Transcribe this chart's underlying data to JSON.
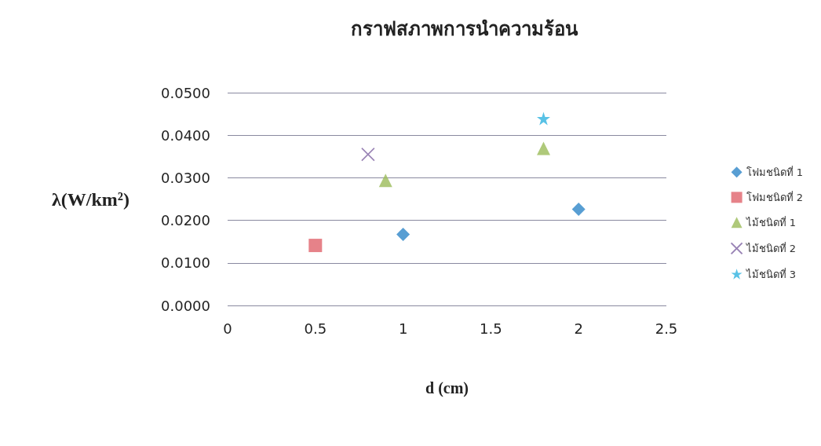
{
  "chart_data": {
    "type": "scatter",
    "title": "กราฟสภาพการนำความร้อน",
    "xlabel": "d (cm)",
    "ylabel": "λ(W/km²)",
    "xlim": [
      0,
      2.5
    ],
    "xticks": [
      0,
      0.5,
      1,
      1.5,
      2,
      2.5
    ],
    "ylim": [
      0,
      0.05
    ],
    "yticks": [
      {
        "value": 0,
        "label": "0.0000"
      },
      {
        "value": 0.01,
        "label": "0.0100"
      },
      {
        "value": 0.02,
        "label": "0.0200"
      },
      {
        "value": 0.03,
        "label": "0.0300"
      },
      {
        "value": 0.04,
        "label": "0.0400"
      },
      {
        "value": 0.05,
        "label": "0.0500"
      }
    ],
    "grid": "y",
    "legend": "right",
    "series": [
      {
        "name": "โฟมชนิดที่ 1",
        "color": "#2e86c8",
        "marker": "diamond",
        "x": [
          1,
          2
        ],
        "values": [
          0.0167,
          0.0226
        ]
      },
      {
        "name": "โฟมชนิดที่ 2",
        "color": "#e0636b",
        "marker": "square",
        "x": [
          0.5
        ],
        "values": [
          0.0141
        ]
      },
      {
        "name": "ไม้ชนิดที่ 1",
        "color": "#9bbb59",
        "marker": "triangle",
        "x": [
          0.9,
          1.8
        ],
        "values": [
          0.0294,
          0.0369
        ]
      },
      {
        "name": "ไม้ชนิดที่ 2",
        "color": "#8064a2",
        "marker": "cross",
        "x": [
          0.8
        ],
        "values": [
          0.0355
        ]
      },
      {
        "name": "ไม้ชนิดที่ 3",
        "color": "#2fb3e0",
        "marker": "star",
        "x": [
          1.8
        ],
        "values": [
          0.0439
        ]
      }
    ]
  }
}
